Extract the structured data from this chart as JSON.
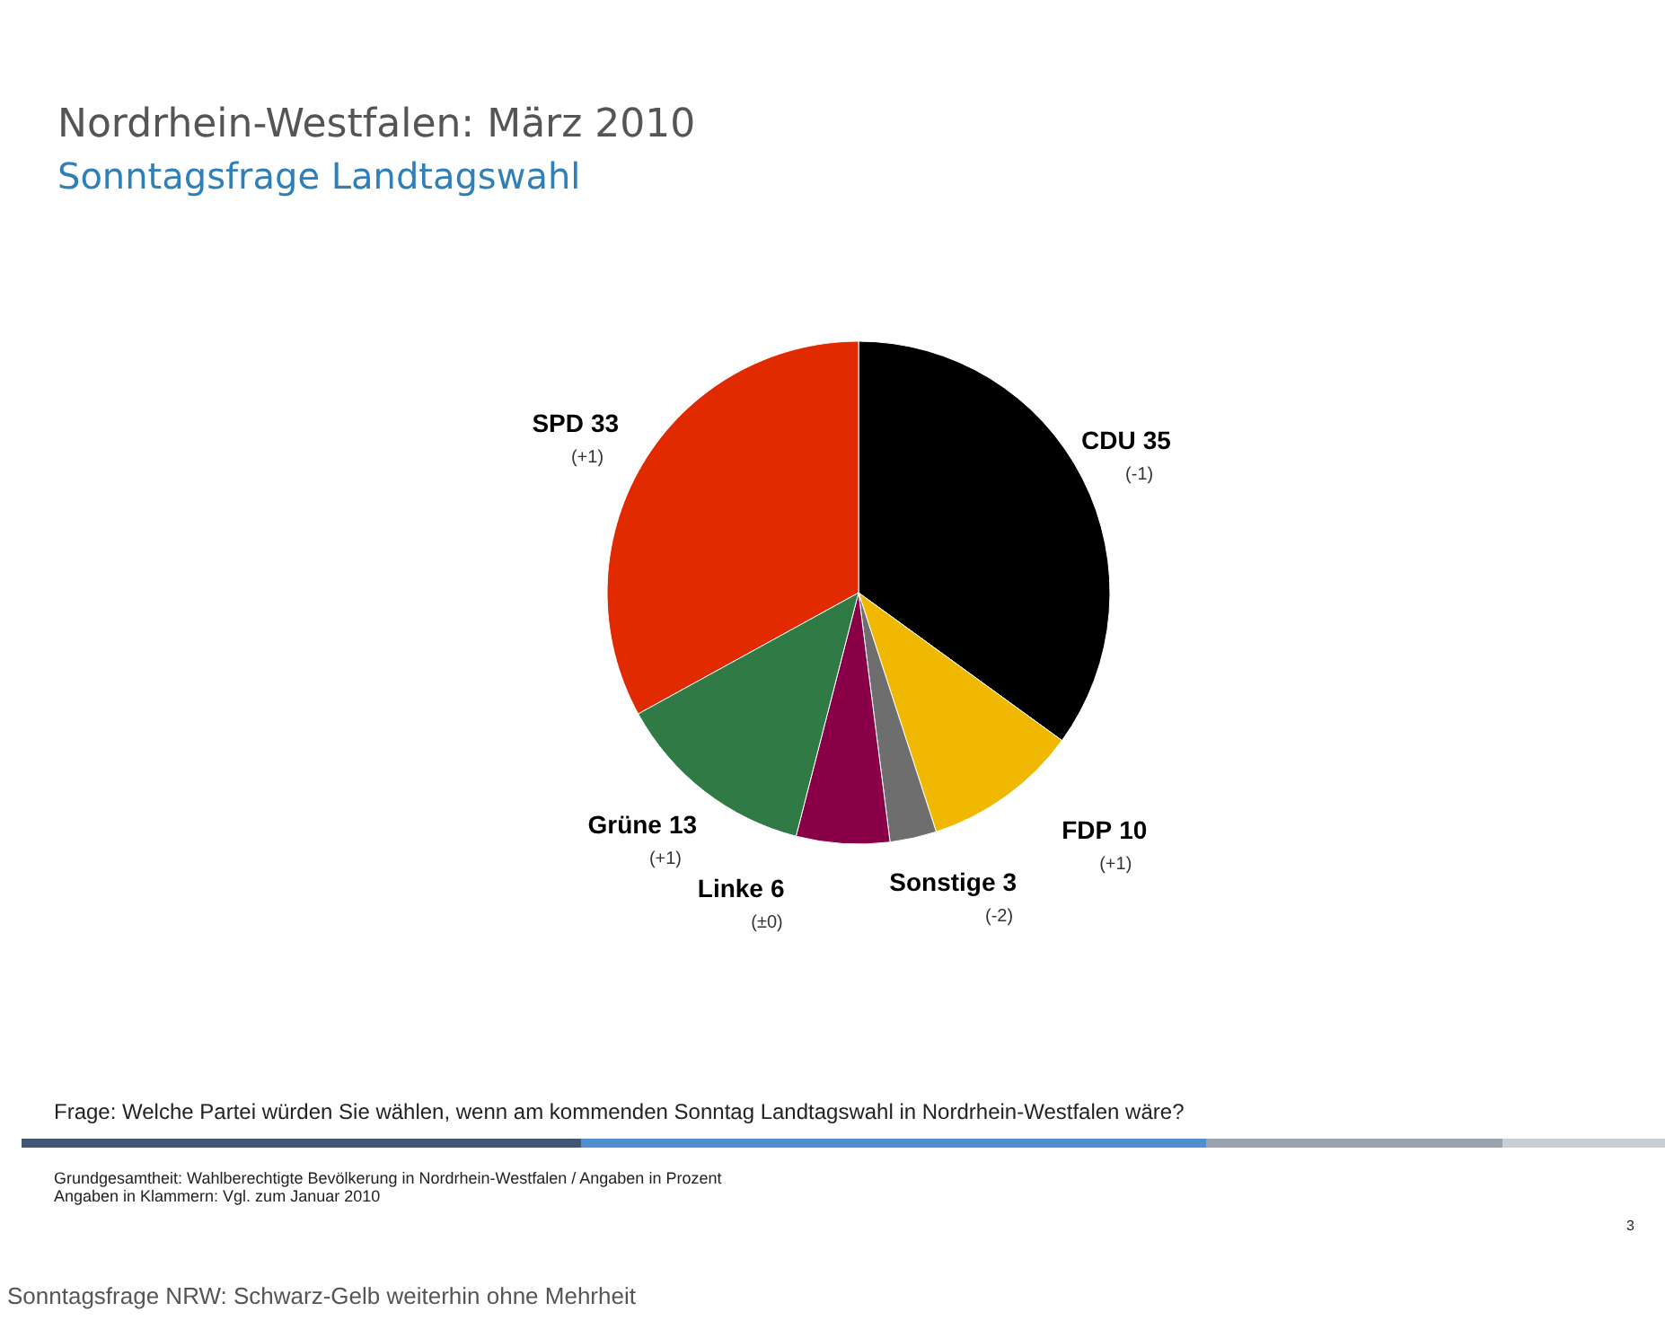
{
  "chart_data": {
    "type": "pie",
    "title": "Nordrhein-Westfalen: März 2010",
    "subtitle": "Sonntagsfrage Landtagswahl",
    "categories": [
      "CDU",
      "FDP",
      "Sonstige",
      "Linke",
      "Grüne",
      "SPD"
    ],
    "values": [
      35,
      10,
      3,
      6,
      13,
      33
    ],
    "colors": [
      "#000000",
      "#f0b800",
      "#6e6e6e",
      "#8a0048",
      "#2f7a45",
      "#e22a00"
    ],
    "data_labels": true,
    "annotations": [
      {
        "text": "(-1)",
        "x": "CDU"
      },
      {
        "text": "(+1)",
        "x": "FDP"
      },
      {
        "text": "(-2)",
        "x": "Sonstige"
      },
      {
        "text": "(±0)",
        "x": "Linke"
      },
      {
        "text": "(+1)",
        "x": "Grüne"
      },
      {
        "text": "(+1)",
        "x": "SPD"
      },
      "Frage: Welche Partei würden Sie wählen, wenn am kommenden Sonntag Landtagswahl in Nordrhein-Westfalen wäre?",
      "Grundgesamtheit: Wahlberechtigte Bevölkerung in Nordrhein-Westfalen / Angaben in Prozent",
      "Angaben in Klammern: Vgl. zum Januar 2010",
      "3",
      "Sonntagsfrage NRW: Schwarz-Gelb weiterhin ohne Mehrheit"
    ]
  }
}
